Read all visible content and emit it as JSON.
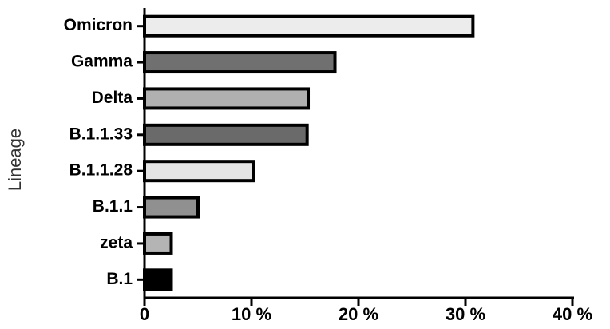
{
  "chart_data": {
    "type": "barh",
    "y_label": "Lineage",
    "categories": [
      "Omicron",
      "Gamma",
      "Delta",
      "B.1.1.33",
      "B.1.1.28",
      "B.1.1",
      "zeta",
      "B.1"
    ],
    "values": [
      30.7,
      17.8,
      15.3,
      15.2,
      10.2,
      5.0,
      2.5,
      2.5
    ],
    "colors": [
      "#ececec",
      "#707070",
      "#b0b0b0",
      "#6a6a6a",
      "#e4e4e4",
      "#909090",
      "#b4b4b4",
      "#000000"
    ],
    "xlim": [
      0,
      40
    ],
    "xticks": [
      0,
      {
        "value": 10,
        "label": "10 %"
      },
      {
        "value": 20,
        "label": "20 %"
      },
      {
        "value": 30,
        "label": "30 %"
      },
      {
        "value": 40,
        "label": "40 %"
      }
    ]
  }
}
